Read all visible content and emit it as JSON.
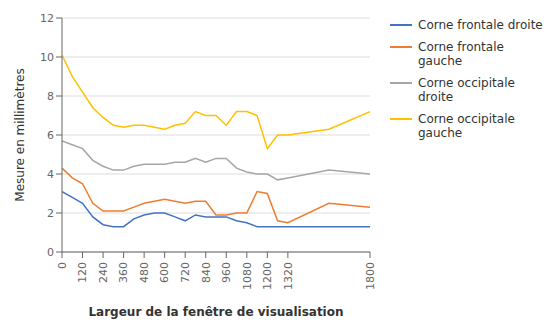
{
  "chart_data": {
    "type": "line",
    "xlabel": "Largeur de la fenêtre de visualisation",
    "ylabel": "Mesure en millimètres",
    "x": [
      0,
      60,
      120,
      180,
      240,
      300,
      360,
      420,
      480,
      540,
      600,
      660,
      720,
      780,
      840,
      900,
      960,
      1020,
      1080,
      1140,
      1200,
      1260,
      1320,
      1560,
      1800
    ],
    "xlim": [
      0,
      1800
    ],
    "xticks": [
      0,
      120,
      240,
      360,
      480,
      600,
      720,
      840,
      960,
      1080,
      1200,
      1320,
      1800
    ],
    "ylim": [
      0,
      12
    ],
    "yticks": [
      0,
      2,
      4,
      6,
      8,
      10,
      12
    ],
    "grid": true,
    "legend": "right",
    "series": [
      {
        "name": "Corne frontale droite",
        "color": "#4472C4",
        "values": [
          3.1,
          2.8,
          2.5,
          1.8,
          1.4,
          1.3,
          1.3,
          1.7,
          1.9,
          2.0,
          2.0,
          1.8,
          1.6,
          1.9,
          1.8,
          1.8,
          1.8,
          1.6,
          1.5,
          1.3,
          1.3,
          1.3,
          1.3,
          1.3,
          1.3
        ]
      },
      {
        "name": "Corne frontale gauche",
        "color": "#ED7D31",
        "values": [
          4.3,
          3.8,
          3.5,
          2.5,
          2.1,
          2.1,
          2.1,
          2.3,
          2.5,
          2.6,
          2.7,
          2.6,
          2.5,
          2.6,
          2.6,
          1.9,
          1.9,
          2.0,
          2.0,
          3.1,
          3.0,
          1.6,
          1.5,
          2.5,
          2.3
        ]
      },
      {
        "name": "Corne occipitale droite",
        "color": "#A6A6A6",
        "values": [
          5.7,
          5.5,
          5.3,
          4.7,
          4.4,
          4.2,
          4.2,
          4.4,
          4.5,
          4.5,
          4.5,
          4.6,
          4.6,
          4.8,
          4.6,
          4.8,
          4.8,
          4.3,
          4.1,
          4.0,
          4.0,
          3.7,
          3.8,
          4.2,
          4.0
        ]
      },
      {
        "name": "Corne occipitale\ngauche",
        "color": "#FFC000",
        "values": [
          10.1,
          9.0,
          8.2,
          7.4,
          6.9,
          6.5,
          6.4,
          6.5,
          6.5,
          6.4,
          6.3,
          6.5,
          6.6,
          7.2,
          7.0,
          7.0,
          6.5,
          7.2,
          7.2,
          7.0,
          5.3,
          6.0,
          6.0,
          6.3,
          7.2
        ]
      }
    ]
  }
}
